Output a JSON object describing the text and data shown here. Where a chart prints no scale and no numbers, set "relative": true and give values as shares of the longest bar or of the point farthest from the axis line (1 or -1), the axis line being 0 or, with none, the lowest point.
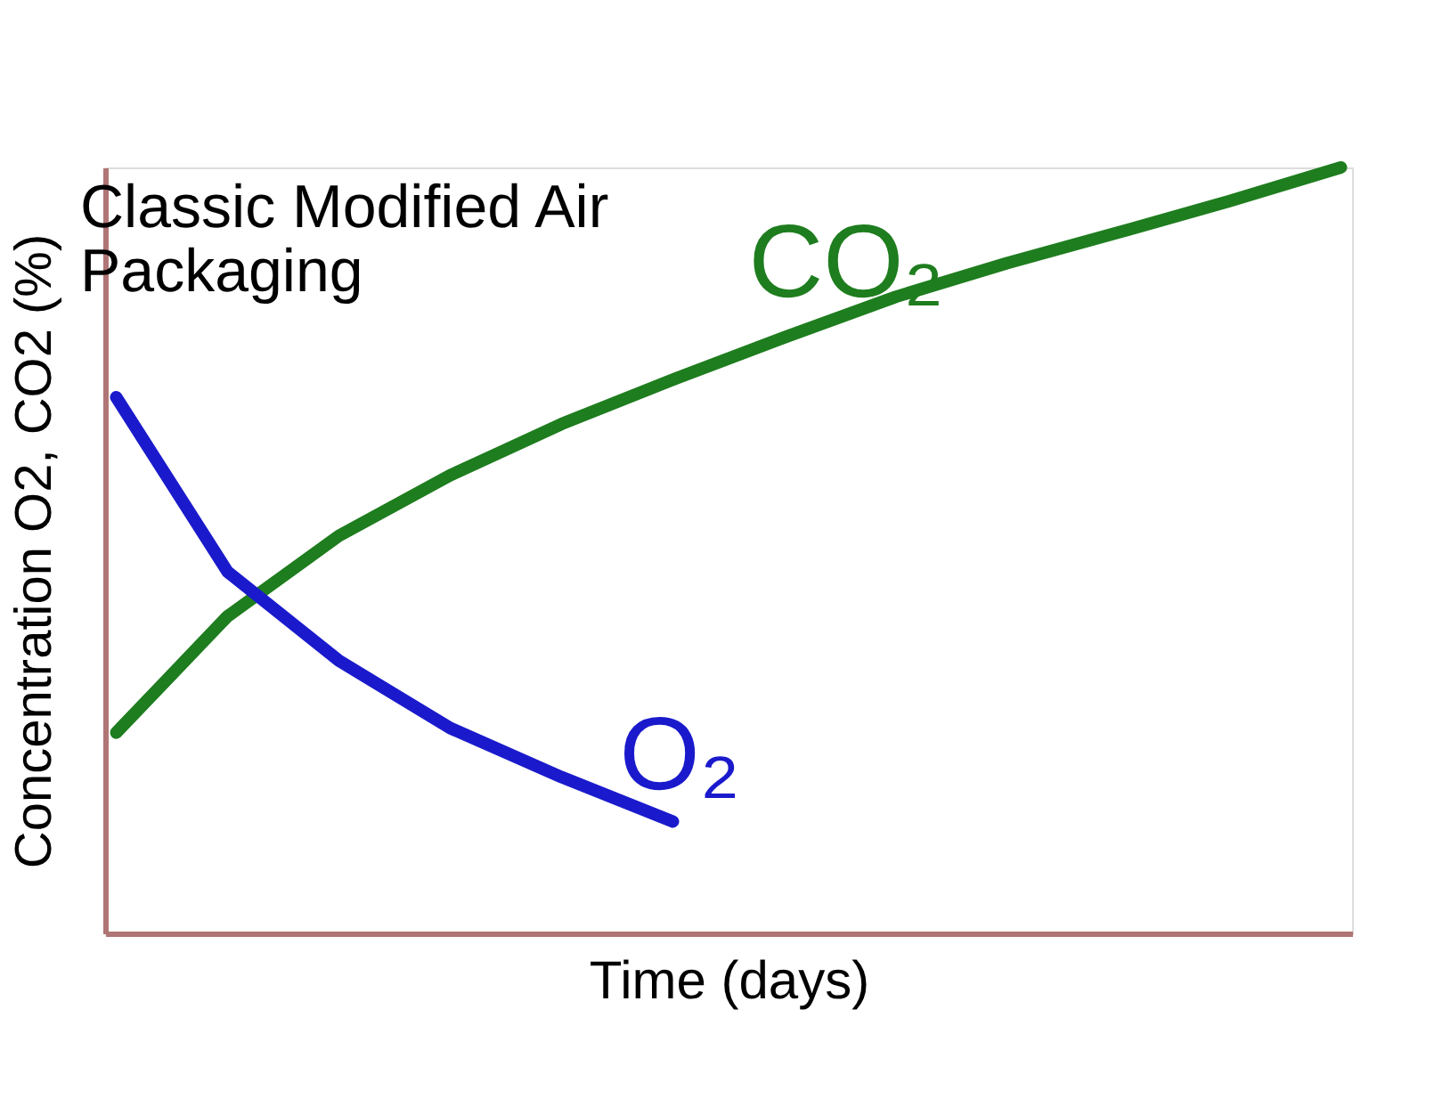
{
  "chart_data": {
    "type": "line",
    "title": "Classic Modified Air Packaging",
    "xlabel": "Time (days)",
    "ylabel": "Concentration O2, CO2 (%)",
    "relative": true,
    "legend": false,
    "grid": false,
    "line_style": "solid",
    "categories": [
      null,
      null,
      null,
      null,
      null,
      null,
      null,
      null,
      null,
      null,
      null,
      null
    ],
    "series": [
      {
        "name": "CO₂",
        "color": "#1e7d1e",
        "values": [
          0.262,
          0.414,
          0.519,
          0.598,
          0.665,
          0.723,
          0.778,
          0.831,
          0.875,
          0.915,
          0.956,
          1
        ]
      },
      {
        "name": "O₂",
        "color": "#1a1acc",
        "values": [
          0.7,
          0.472,
          0.356,
          0.268,
          0.204,
          0.146,
          null,
          null,
          null,
          null,
          null,
          null
        ]
      }
    ]
  }
}
